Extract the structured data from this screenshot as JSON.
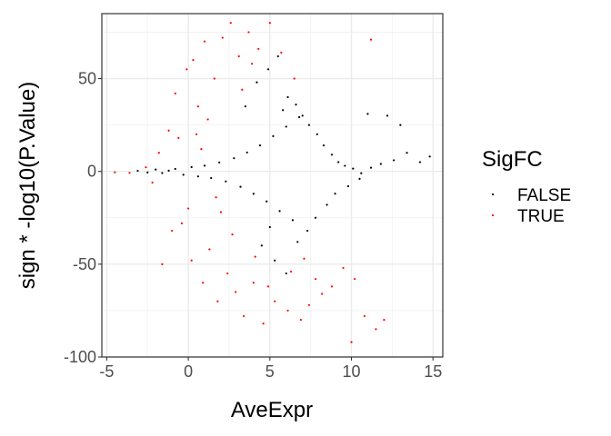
{
  "chart_data": {
    "type": "scatter",
    "title": "",
    "xlabel": "AveExpr",
    "ylabel": "sign * -log10(P.Value)",
    "xlim": [
      -5.3,
      15.6
    ],
    "ylim": [
      -100,
      85
    ],
    "x_ticks": [
      -5,
      0,
      5,
      10,
      15
    ],
    "x_tick_labels": [
      "-5",
      "0",
      "5",
      "10",
      "15"
    ],
    "y_ticks": [
      -100,
      -50,
      0,
      50
    ],
    "y_tick_labels": [
      "-100",
      "-50",
      "0",
      "50"
    ],
    "grid": true,
    "theme": "bw",
    "legend": {
      "title": "SigFC",
      "position": "right",
      "entries": [
        {
          "label": "FALSE",
          "color": "#000000"
        },
        {
          "label": "TRUE",
          "color": "#ff0000"
        }
      ]
    },
    "series": [
      {
        "name": "FALSE",
        "color": "#000000",
        "points": [
          [
            -3.1,
            0.3
          ],
          [
            -2.5,
            -0.6
          ],
          [
            -2.0,
            1.0
          ],
          [
            -1.6,
            -0.9
          ],
          [
            -1.2,
            0.4
          ],
          [
            -0.8,
            1.3
          ],
          [
            -0.3,
            -1.8
          ],
          [
            0.2,
            2.3
          ],
          [
            0.6,
            -2.7
          ],
          [
            1.0,
            3.1
          ],
          [
            1.4,
            -3.6
          ],
          [
            1.9,
            4.8
          ],
          [
            2.3,
            -5.4
          ],
          [
            2.8,
            7.1
          ],
          [
            3.2,
            -8.3
          ],
          [
            3.6,
            10.2
          ],
          [
            4.0,
            -12.1
          ],
          [
            4.4,
            14.0
          ],
          [
            4.8,
            -16.2
          ],
          [
            5.2,
            19.0
          ],
          [
            5.6,
            -21.4
          ],
          [
            6.0,
            24.1
          ],
          [
            6.4,
            -26.3
          ],
          [
            6.8,
            29.2
          ],
          [
            3.5,
            35.0
          ],
          [
            4.2,
            48.0
          ],
          [
            4.9,
            55.0
          ],
          [
            5.5,
            62.0
          ],
          [
            6.1,
            40.0
          ],
          [
            6.6,
            36.0
          ],
          [
            7.0,
            30.0
          ],
          [
            7.4,
            25.0
          ],
          [
            7.9,
            20.0
          ],
          [
            8.3,
            14.0
          ],
          [
            8.8,
            9.0
          ],
          [
            9.2,
            5.0
          ],
          [
            9.6,
            3.0
          ],
          [
            10.1,
            1.5
          ],
          [
            10.6,
            -1.0
          ],
          [
            11.2,
            2.0
          ],
          [
            11.8,
            4.0
          ],
          [
            12.6,
            6.0
          ],
          [
            13.4,
            10.0
          ],
          [
            14.2,
            5.0
          ],
          [
            14.8,
            8.0
          ],
          [
            11.0,
            31.0
          ],
          [
            12.2,
            30.0
          ],
          [
            13.0,
            25.0
          ],
          [
            4.5,
            -40.0
          ],
          [
            5.3,
            -48.0
          ],
          [
            6.0,
            -55.0
          ],
          [
            6.7,
            -38.0
          ],
          [
            7.3,
            -32.0
          ],
          [
            7.8,
            -25.0
          ],
          [
            8.5,
            -18.0
          ],
          [
            9.0,
            -12.0
          ],
          [
            9.8,
            -8.0
          ],
          [
            10.5,
            -4.0
          ],
          [
            5.0,
            -30.0
          ],
          [
            5.8,
            33.0
          ]
        ]
      },
      {
        "name": "TRUE",
        "color": "#ff0000",
        "points": [
          [
            -4.5,
            -0.5
          ],
          [
            -3.6,
            -0.8
          ],
          [
            -2.6,
            2.2
          ],
          [
            -2.2,
            -6.0
          ],
          [
            -1.8,
            10.0
          ],
          [
            -1.6,
            -50.0
          ],
          [
            -1.2,
            22.0
          ],
          [
            -1.0,
            -32.0
          ],
          [
            -0.8,
            42.0
          ],
          [
            -0.4,
            -28.0
          ],
          [
            -0.1,
            55.0
          ],
          [
            0.3,
            60.0
          ],
          [
            0.2,
            -48.0
          ],
          [
            0.6,
            35.0
          ],
          [
            0.9,
            -60.0
          ],
          [
            1.0,
            70.0
          ],
          [
            1.3,
            -42.0
          ],
          [
            1.6,
            50.0
          ],
          [
            1.8,
            -70.0
          ],
          [
            2.1,
            72.0
          ],
          [
            2.4,
            -55.0
          ],
          [
            2.6,
            80.0
          ],
          [
            2.9,
            -65.0
          ],
          [
            3.1,
            62.0
          ],
          [
            3.4,
            -78.0
          ],
          [
            3.7,
            75.0
          ],
          [
            4.0,
            -60.0
          ],
          [
            4.3,
            66.0
          ],
          [
            4.6,
            -82.0
          ],
          [
            5.0,
            80.0
          ],
          [
            5.3,
            -70.0
          ],
          [
            5.7,
            64.0
          ],
          [
            6.1,
            -75.0
          ],
          [
            6.5,
            50.0
          ],
          [
            6.9,
            -80.0
          ],
          [
            7.4,
            -72.0
          ],
          [
            7.8,
            -58.0
          ],
          [
            8.2,
            -66.0
          ],
          [
            8.8,
            -62.0
          ],
          [
            9.5,
            -52.0
          ],
          [
            10.2,
            -58.0
          ],
          [
            10.8,
            -78.0
          ],
          [
            11.5,
            -85.0
          ],
          [
            12.0,
            -80.0
          ],
          [
            11.2,
            71.0
          ],
          [
            10.0,
            -92.0
          ],
          [
            0.5,
            20.0
          ],
          [
            1.2,
            28.0
          ],
          [
            2.0,
            -22.0
          ],
          [
            2.7,
            -34.0
          ],
          [
            3.3,
            44.0
          ],
          [
            4.1,
            -46.0
          ],
          [
            0.8,
            12.0
          ],
          [
            1.7,
            -14.0
          ],
          [
            3.9,
            58.0
          ],
          [
            4.9,
            -62.0
          ],
          [
            6.3,
            -54.0
          ],
          [
            7.1,
            -47.0
          ],
          [
            -0.6,
            18.0
          ],
          [
            0.0,
            -20.0
          ]
        ]
      }
    ]
  }
}
